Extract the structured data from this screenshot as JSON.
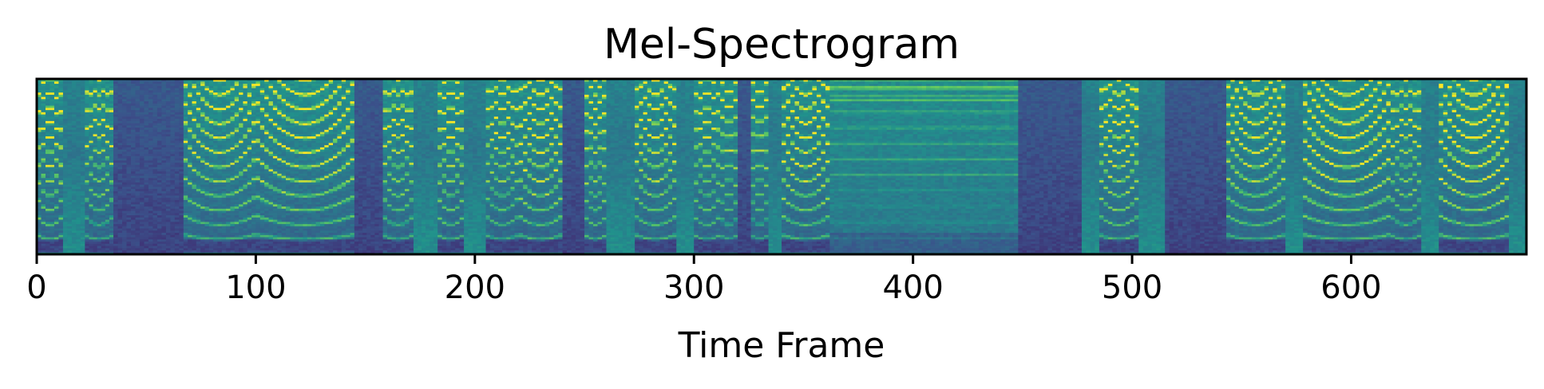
{
  "chart_data": {
    "type": "heatmap",
    "title": "Mel-Spectrogram",
    "xlabel": "Time Frame",
    "ylabel": "",
    "xlim": [
      0,
      680
    ],
    "xticks": [
      0,
      100,
      200,
      300,
      400,
      500,
      600
    ],
    "yticks": [],
    "colormap": "viridis",
    "colorscale": [
      "#440154",
      "#3b528b",
      "#21918c",
      "#5ec962",
      "#fde725"
    ],
    "segments": [
      {
        "start": 0,
        "end": 12,
        "type": "voiced",
        "energy": 0.9
      },
      {
        "start": 12,
        "end": 22,
        "type": "fricative",
        "energy": 0.5
      },
      {
        "start": 22,
        "end": 35,
        "type": "voiced",
        "energy": 0.75
      },
      {
        "start": 35,
        "end": 67,
        "type": "silence",
        "energy": 0.2
      },
      {
        "start": 67,
        "end": 100,
        "type": "voiced",
        "energy": 0.8
      },
      {
        "start": 100,
        "end": 145,
        "type": "voiced",
        "energy": 0.85
      },
      {
        "start": 145,
        "end": 158,
        "type": "silence",
        "energy": 0.15
      },
      {
        "start": 158,
        "end": 172,
        "type": "voiced",
        "energy": 0.75
      },
      {
        "start": 172,
        "end": 183,
        "type": "fricative",
        "energy": 0.45
      },
      {
        "start": 183,
        "end": 195,
        "type": "voiced",
        "energy": 0.85
      },
      {
        "start": 195,
        "end": 205,
        "type": "fricative",
        "energy": 0.45
      },
      {
        "start": 205,
        "end": 220,
        "type": "voiced",
        "energy": 0.75
      },
      {
        "start": 220,
        "end": 240,
        "type": "voiced",
        "energy": 0.9
      },
      {
        "start": 240,
        "end": 250,
        "type": "silence",
        "energy": 0.2
      },
      {
        "start": 250,
        "end": 260,
        "type": "voiced",
        "energy": 0.8
      },
      {
        "start": 260,
        "end": 273,
        "type": "fricative",
        "energy": 0.45
      },
      {
        "start": 273,
        "end": 292,
        "type": "voiced",
        "energy": 0.85
      },
      {
        "start": 292,
        "end": 300,
        "type": "fricative",
        "energy": 0.5
      },
      {
        "start": 300,
        "end": 312,
        "type": "voiced",
        "energy": 0.75
      },
      {
        "start": 312,
        "end": 320,
        "type": "voiced",
        "energy": 0.7
      },
      {
        "start": 320,
        "end": 326,
        "type": "silence",
        "energy": 0.2
      },
      {
        "start": 326,
        "end": 334,
        "type": "voiced",
        "energy": 0.7
      },
      {
        "start": 334,
        "end": 340,
        "type": "fricative",
        "energy": 0.45
      },
      {
        "start": 340,
        "end": 362,
        "type": "voiced",
        "energy": 0.9
      },
      {
        "start": 362,
        "end": 448,
        "type": "sustained",
        "energy": 0.7
      },
      {
        "start": 448,
        "end": 477,
        "type": "silence",
        "energy": 0.1
      },
      {
        "start": 477,
        "end": 485,
        "type": "fricative",
        "energy": 0.45
      },
      {
        "start": 485,
        "end": 503,
        "type": "voiced",
        "energy": 0.85
      },
      {
        "start": 503,
        "end": 515,
        "type": "fricative",
        "energy": 0.4
      },
      {
        "start": 515,
        "end": 543,
        "type": "silence",
        "energy": 0.15
      },
      {
        "start": 543,
        "end": 570,
        "type": "voiced",
        "energy": 0.85
      },
      {
        "start": 570,
        "end": 578,
        "type": "fricative",
        "energy": 0.45
      },
      {
        "start": 578,
        "end": 618,
        "type": "voiced",
        "energy": 0.9
      },
      {
        "start": 618,
        "end": 632,
        "type": "voiced",
        "energy": 0.75
      },
      {
        "start": 632,
        "end": 640,
        "type": "fricative",
        "energy": 0.45
      },
      {
        "start": 640,
        "end": 672,
        "type": "voiced",
        "energy": 0.95
      },
      {
        "start": 672,
        "end": 680,
        "type": "fricative",
        "energy": 0.45
      }
    ]
  }
}
